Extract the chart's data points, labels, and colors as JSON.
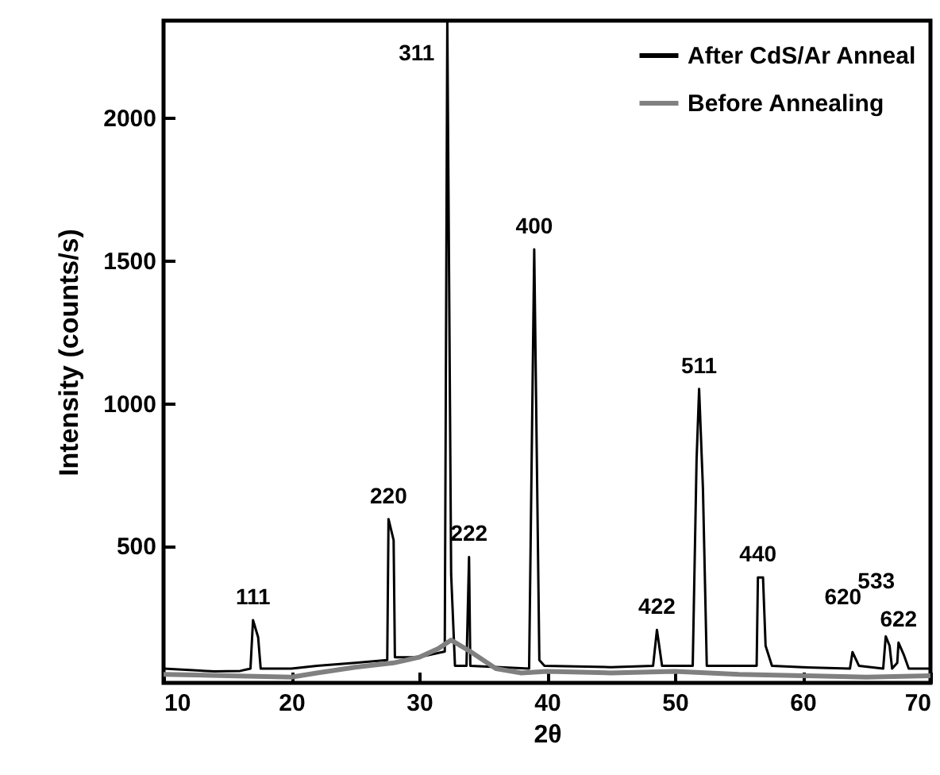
{
  "chart_data": {
    "type": "line",
    "xlabel": "2θ",
    "ylabel": "Intensity (counts/s)",
    "xlim": [
      10,
      70
    ],
    "ylim": [
      20,
      2340
    ],
    "xticks": [
      10,
      20,
      30,
      40,
      50,
      60,
      70
    ],
    "yticks": [
      500,
      {
        "value": 1000,
        "label": "1000"
      },
      {
        "value": 1500,
        "label": "1500"
      },
      {
        "value": 2000,
        "label": "2000"
      }
    ],
    "legend": "top right",
    "grid": false,
    "series": [
      {
        "name": "After CdS/Ar Anneal",
        "color": "#000000",
        "x": [
          10,
          12,
          14,
          16,
          16.8,
          17.0,
          17.4,
          17.6,
          20,
          22,
          25,
          27.5,
          27.6,
          28.0,
          28.1,
          30,
          32.0,
          32.2,
          32.5,
          32.8,
          33.7,
          33.9,
          34.0,
          38.6,
          39.0,
          39.4,
          39.8,
          45,
          48.3,
          48.6,
          49,
          51.4,
          51.7,
          51.9,
          52.2,
          52.5,
          56.4,
          56.5,
          56.9,
          57.1,
          57.6,
          60,
          63.7,
          63.9,
          64.4,
          66.3,
          66.5,
          66.8,
          67.0,
          67.4,
          67.5,
          67.9,
          68.3,
          70
        ],
        "values": [
          70,
          65,
          60,
          62,
          70,
          240,
          180,
          70,
          70,
          80,
          90,
          100,
          594,
          520,
          110,
          110,
          130,
          2340,
          400,
          80,
          80,
          461,
          80,
          70,
          1539,
          100,
          80,
          75,
          80,
          206,
          80,
          80,
          800,
          1050,
          700,
          80,
          80,
          389,
          389,
          150,
          80,
          75,
          70,
          128,
          80,
          70,
          183,
          150,
          70,
          90,
          161,
          120,
          70,
          70
        ]
      },
      {
        "name": "Before Annealing",
        "color": "#808080",
        "x": [
          10,
          15,
          20,
          22,
          25,
          28,
          30,
          31.5,
          32.5,
          34,
          36,
          38,
          40,
          45,
          50,
          55,
          60,
          65,
          70
        ],
        "values": [
          50,
          45,
          40,
          55,
          75,
          90,
          110,
          140,
          170,
          130,
          70,
          55,
          60,
          55,
          60,
          50,
          45,
          40,
          45
        ]
      }
    ],
    "annotations": [
      {
        "text": "111",
        "x": 17.0,
        "y": 240
      },
      {
        "text": "220",
        "x": 27.6,
        "y": 594
      },
      {
        "text": "311",
        "x": 32.2,
        "y": 2340
      },
      {
        "text": "222",
        "x": 33.9,
        "y": 461
      },
      {
        "text": "400",
        "x": 39.0,
        "y": 1539
      },
      {
        "text": "422",
        "x": 48.6,
        "y": 206
      },
      {
        "text": "511",
        "x": 51.9,
        "y": 1050
      },
      {
        "text": "440",
        "x": 56.5,
        "y": 389
      },
      {
        "text": "620",
        "x": 63.9,
        "y": 128
      },
      {
        "text": "533",
        "x": 66.5,
        "y": 183
      },
      {
        "text": "622",
        "x": 67.5,
        "y": 161
      }
    ]
  }
}
